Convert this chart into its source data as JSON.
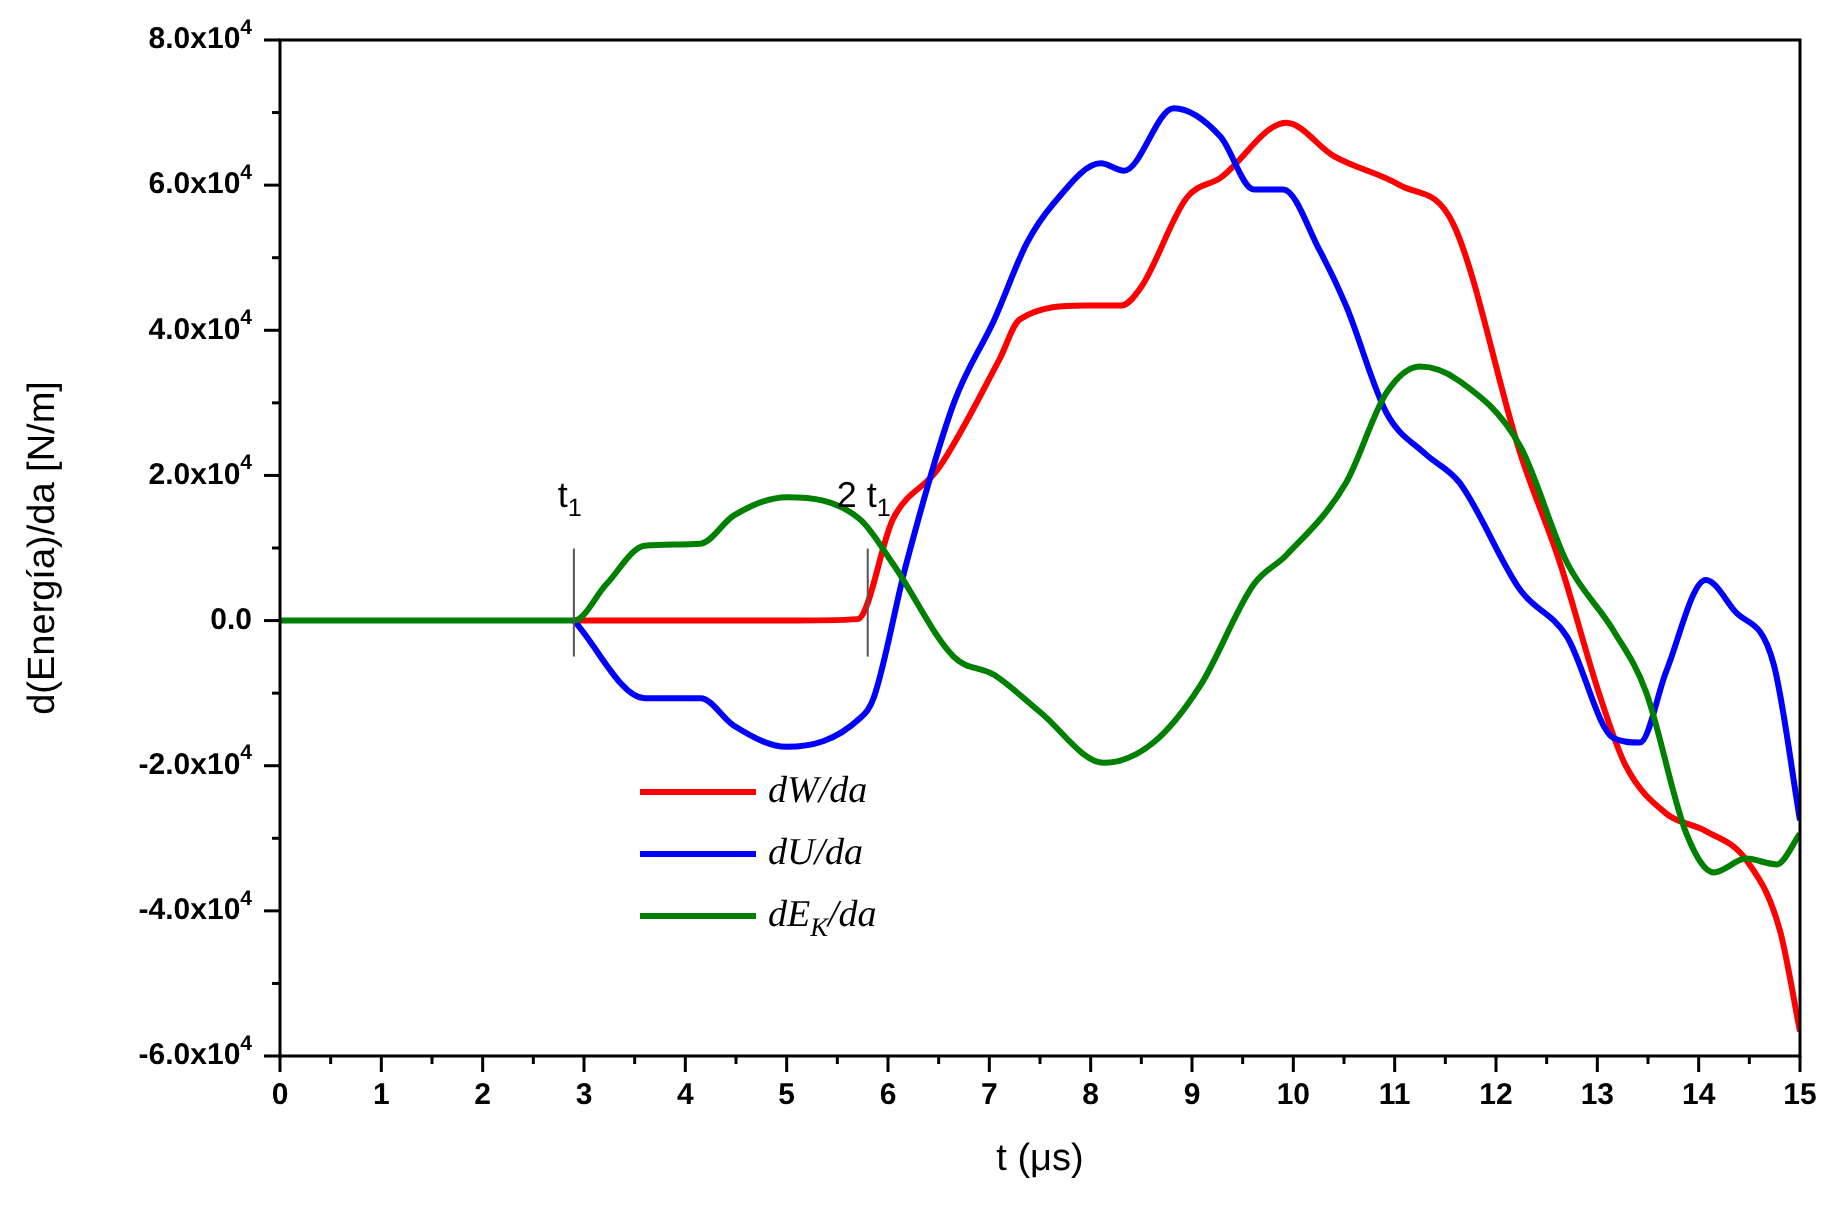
{
  "chart_data": {
    "type": "line",
    "xlabel": "t (μs)",
    "ylabel": "d(Energía)/da [N/m]",
    "xlim": [
      0,
      15
    ],
    "xticks": [
      0,
      1,
      2,
      3,
      4,
      5,
      6,
      7,
      8,
      9,
      10,
      11,
      12,
      13,
      14,
      15
    ],
    "ylim": [
      -60000,
      80000
    ],
    "yticks": [
      {
        "value": -60000,
        "label": "-6.0x10$^{4}$"
      },
      {
        "value": -40000,
        "label": "-4.0x10$^{4}$"
      },
      {
        "value": -20000,
        "label": "-2.0x10$^{4}$"
      },
      {
        "value": 0,
        "label": "0.0"
      },
      {
        "value": 20000,
        "label": "2.0x10$^{4}$"
      },
      {
        "value": 40000,
        "label": "4.0x10$^{4}$"
      },
      {
        "value": 60000,
        "label": "6.0x10$^{4}$"
      },
      {
        "value": 80000,
        "label": "8.0x10$^{4}$"
      }
    ],
    "grid": false,
    "legend": "bottom left",
    "marker": "none",
    "line_style": "solid",
    "series": [
      {
        "name": "dW/da",
        "color": "#ff0000",
        "x": [
          2.9,
          4,
          5,
          5.7,
          6.05,
          6.5,
          7.1,
          7.3,
          7.95,
          8.3,
          8.5,
          8.95,
          9.28,
          9.93,
          10.4,
          11.05,
          11.58,
          12.24,
          12.63,
          13.03,
          13.28,
          13.68,
          14.07,
          14.47,
          14.8,
          15
        ],
        "values": [
          0,
          0,
          0,
          200,
          14000,
          21000,
          36000,
          41500,
          43400,
          43400,
          46000,
          58300,
          61000,
          68600,
          64000,
          60000,
          54600,
          23000,
          8000,
          -10600,
          -20000,
          -26600,
          -29000,
          -33000,
          -42600,
          -56600
        ]
      },
      {
        "name": "dU/da",
        "color": "#0000ff",
        "x": [
          2.9,
          3.6,
          4.15,
          4.48,
          5.0,
          5.72,
          5.86,
          6.18,
          6.65,
          7.05,
          7.37,
          7.63,
          8.1,
          8.33,
          8.82,
          9.28,
          9.61,
          9.9,
          10.26,
          10.52,
          10.92,
          11.3,
          11.64,
          12.24,
          12.7,
          13.16,
          13.42,
          13.68,
          14.07,
          14.35,
          14.74,
          15
        ],
        "values": [
          0,
          -10700,
          -10700,
          -14500,
          -17400,
          -13500,
          -10600,
          7800,
          30000,
          41500,
          52000,
          57400,
          63000,
          62000,
          70600,
          66700,
          59400,
          59400,
          51000,
          43400,
          28600,
          23000,
          19000,
          4200,
          -2200,
          -16200,
          -16800,
          -7000,
          5600,
          1400,
          -6000,
          -27500
        ]
      },
      {
        "name": "dE$_{K}$/da",
        "color": "#008000",
        "x": [
          0,
          1,
          2,
          2.9,
          3.22,
          3.6,
          4.15,
          4.48,
          5.0,
          5.72,
          6.05,
          6.65,
          7.05,
          7.5,
          8.13,
          8.62,
          9.08,
          9.61,
          9.93,
          10.52,
          10.92,
          11.25,
          11.64,
          12.24,
          12.7,
          13.16,
          13.48,
          13.88,
          14.15,
          14.47,
          14.77,
          15
        ],
        "values": [
          0,
          0,
          0,
          0,
          5000,
          10300,
          10600,
          14500,
          17000,
          14000,
          7800,
          -5000,
          -7500,
          -12600,
          -19600,
          -16800,
          -9000,
          5000,
          9000,
          19000,
          31400,
          35000,
          33000,
          24000,
          8000,
          -1400,
          -9800,
          -29400,
          -34700,
          -32800,
          -33600,
          -29400
        ]
      }
    ],
    "annotations": [
      {
        "text": "t$_{1}$",
        "x": 2.9,
        "y": 0
      },
      {
        "text": "2 t$_{1}$",
        "x": 5.8,
        "y": 0
      }
    ]
  }
}
